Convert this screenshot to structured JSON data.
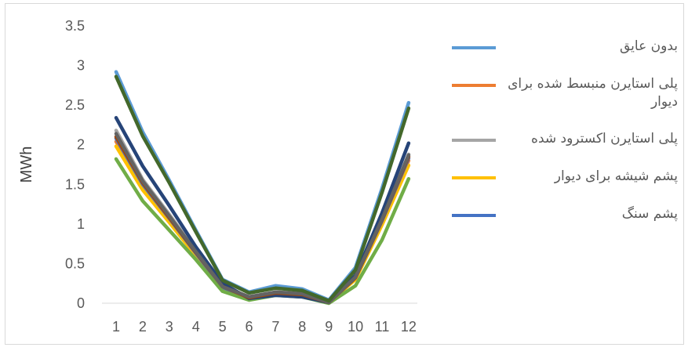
{
  "chart_data": {
    "type": "line",
    "title": "",
    "xlabel": "",
    "ylabel": "MWh",
    "categories": [
      "1",
      "2",
      "3",
      "4",
      "5",
      "6",
      "7",
      "8",
      "9",
      "10",
      "11",
      "12"
    ],
    "ylim": [
      0,
      3.5
    ],
    "yticks": [
      "0",
      "0.5",
      "1",
      "1.5",
      "2",
      "2.5",
      "3",
      "3.5"
    ],
    "grid": false,
    "legend_position": "right",
    "series": [
      {
        "name": "بدون عایق",
        "color": "#5B9BD5",
        "in_legend": true,
        "values": [
          2.92,
          2.16,
          1.55,
          0.92,
          0.3,
          0.14,
          0.22,
          0.18,
          0.04,
          0.45,
          1.45,
          2.53
        ]
      },
      {
        "name": "پلی استایرن منبسط شده برای دیوار",
        "color": "#ED7D31",
        "in_legend": true,
        "values": [
          2.04,
          1.48,
          1.05,
          0.62,
          0.2,
          0.07,
          0.13,
          0.11,
          0.01,
          0.31,
          1.02,
          1.8
        ]
      },
      {
        "name": "پلی استایرن اکسترود شده",
        "color": "#A5A5A5",
        "in_legend": true,
        "values": [
          2.18,
          1.56,
          1.12,
          0.66,
          0.22,
          0.08,
          0.14,
          0.12,
          0.01,
          0.33,
          1.08,
          1.88
        ]
      },
      {
        "name": "پشم شیشه برای دیوار",
        "color": "#FFC000",
        "in_legend": true,
        "values": [
          1.98,
          1.43,
          1.02,
          0.6,
          0.19,
          0.07,
          0.13,
          0.11,
          0.01,
          0.3,
          0.99,
          1.74
        ]
      },
      {
        "name": "پشم سنگ",
        "color": "#4472C4",
        "in_legend": true,
        "values": [
          2.08,
          1.5,
          1.07,
          0.63,
          0.2,
          0.07,
          0.13,
          0.11,
          0.01,
          0.32,
          1.04,
          1.83
        ]
      },
      {
        "name": "",
        "color": "#70AD47",
        "in_legend": false,
        "values": [
          1.82,
          1.29,
          0.92,
          0.55,
          0.15,
          0.04,
          0.1,
          0.08,
          0.0,
          0.22,
          0.8,
          1.57
        ]
      },
      {
        "name": "",
        "color": "#264478",
        "in_legend": false,
        "values": [
          2.34,
          1.73,
          1.23,
          0.71,
          0.25,
          0.06,
          0.1,
          0.08,
          0.01,
          0.35,
          1.14,
          2.02
        ]
      },
      {
        "name": "",
        "color": "#9E480E",
        "in_legend": false,
        "values": [
          2.1,
          1.52,
          1.08,
          0.64,
          0.21,
          0.07,
          0.13,
          0.11,
          0.01,
          0.32,
          1.05,
          1.85
        ]
      },
      {
        "name": "",
        "color": "#636363",
        "in_legend": false,
        "values": [
          2.14,
          1.54,
          1.1,
          0.65,
          0.21,
          0.08,
          0.14,
          0.12,
          0.01,
          0.33,
          1.06,
          1.87
        ]
      },
      {
        "name": "",
        "color": "#43682B",
        "in_legend": false,
        "values": [
          2.86,
          2.11,
          1.52,
          0.9,
          0.29,
          0.13,
          0.19,
          0.16,
          0.03,
          0.42,
          1.4,
          2.46
        ]
      }
    ]
  }
}
